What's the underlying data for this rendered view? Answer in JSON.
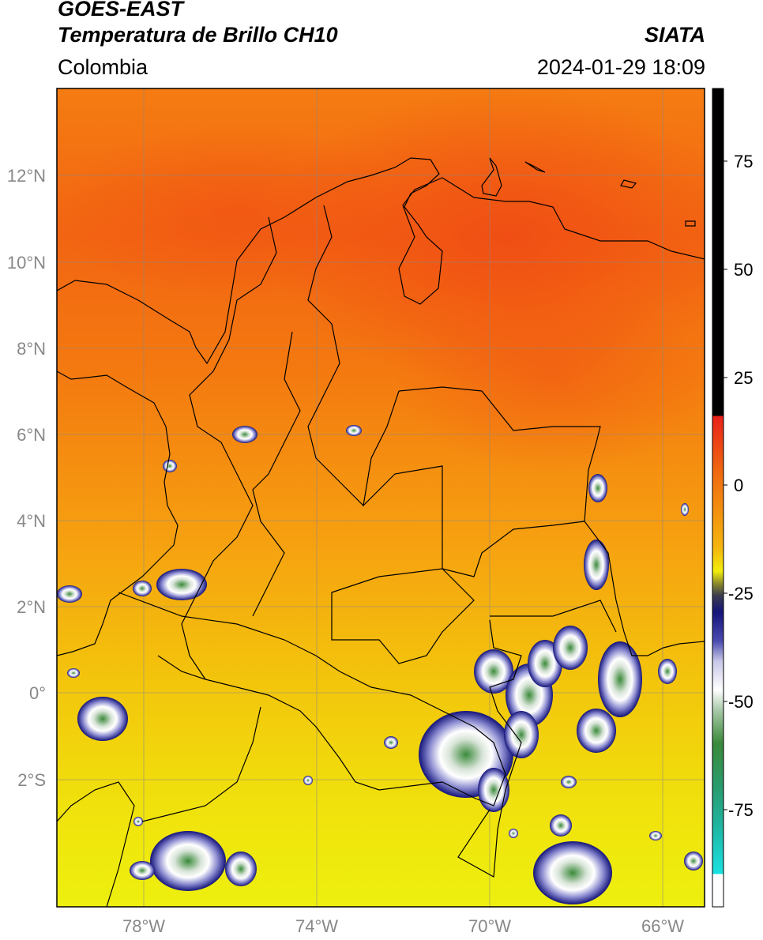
{
  "header": {
    "line1": "GOES-EAST",
    "line2": "Temperatura de Brillo CH10",
    "brand": "SIATA",
    "region": "Colombia",
    "timestamp": "2024-01-29 18:09"
  },
  "map": {
    "lat_ticks": [
      "12°N",
      "10°N",
      "8°N",
      "6°N",
      "4°N",
      "2°N",
      "0°",
      "2°S"
    ],
    "lon_ticks": [
      "78°W",
      "74°W",
      "70°W",
      "66°W"
    ]
  },
  "colorbar": {
    "ticks": [
      "75",
      "50",
      "25",
      "0",
      "-25",
      "-50",
      "-75"
    ],
    "colors": {
      "black": "#000000",
      "red": "#e8201a",
      "orange": "#f08a0a",
      "yellow": "#f1ec0c",
      "olive": "#8a8a2a",
      "navy": "#14147a",
      "white": "#ffffff",
      "green": "#3a8a3a",
      "teal": "#20b4a0",
      "cyan": "#1ae2e2"
    }
  }
}
